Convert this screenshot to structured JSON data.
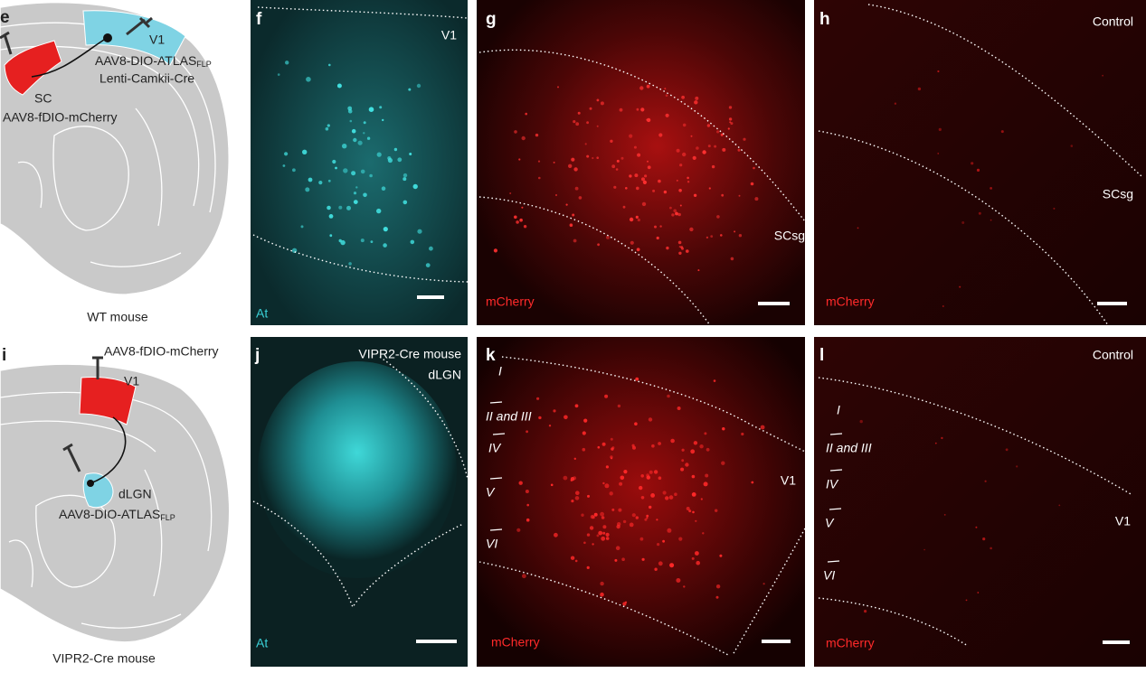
{
  "panels": {
    "e": {
      "letter": "e",
      "target": "V1",
      "injection_target": {
        "text": "AAV8-DIO-ATLAS",
        "subscript": "FLP"
      },
      "injection_target_2": "Lenti-Camkii-Cre",
      "source": "SC",
      "injection_source": "AAV8-fDIO-mCherry",
      "caption": "WT mouse"
    },
    "f": {
      "letter": "f",
      "region": "V1",
      "stain": "At"
    },
    "g": {
      "letter": "g",
      "region": "SCsg",
      "stain": "mCherry"
    },
    "h": {
      "letter": "h",
      "condition": "Control",
      "region": "SCsg",
      "stain": "mCherry"
    },
    "i": {
      "letter": "i",
      "injection_target": "AAV8-fDIO-mCherry",
      "target": "V1",
      "source": "dLGN",
      "injection_source": {
        "text": "AAV8-DIO-ATLAS",
        "subscript": "FLP"
      },
      "caption": "VIPR2-Cre mouse"
    },
    "j": {
      "letter": "j",
      "mouse": "VIPR2-Cre mouse",
      "region": "dLGN",
      "stain": "At"
    },
    "k": {
      "letter": "k",
      "layers": [
        "I",
        "II and III",
        "IV",
        "V",
        "VI"
      ],
      "region": "V1",
      "stain": "mCherry"
    },
    "l": {
      "letter": "l",
      "condition": "Control",
      "layers": [
        "I",
        "II and III",
        "IV",
        "V",
        "VI"
      ],
      "region": "V1",
      "stain": "mCherry"
    }
  }
}
